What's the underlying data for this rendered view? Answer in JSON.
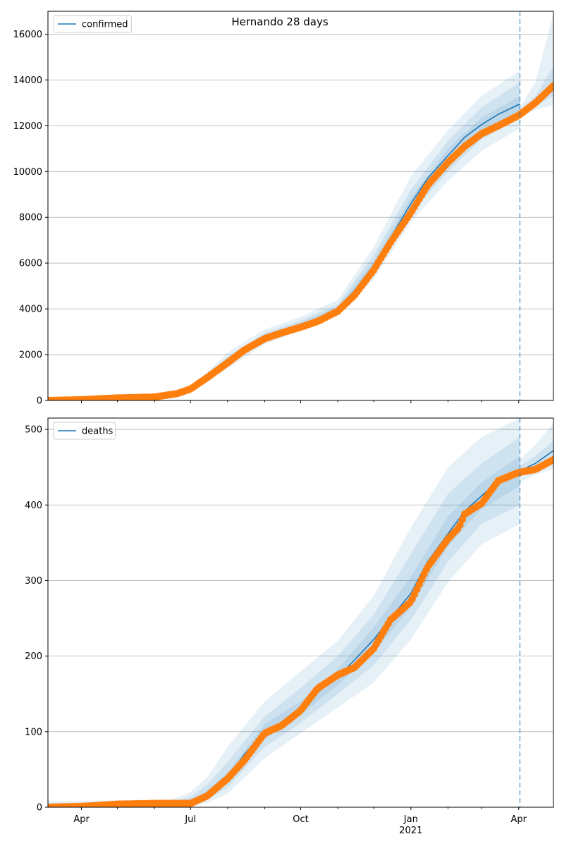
{
  "figure": {
    "title": "Hernando 28 days",
    "x_tick_labels": [
      {
        "label": "Apr",
        "date": "2020-04-01"
      },
      {
        "label": "Jul",
        "date": "2020-07-01"
      },
      {
        "label": "Oct",
        "date": "2020-10-01"
      },
      {
        "label": "Jan",
        "date": "2021-01-01"
      },
      {
        "label": "Apr",
        "date": "2021-04-01"
      }
    ],
    "x_year_label": {
      "label": "2021",
      "date": "2021-01-01"
    },
    "xlim": [
      "2020-03-04",
      "2021-04-30"
    ],
    "forecast_line_date": "2021-04-02"
  },
  "colors": {
    "model": "#1f77b4",
    "observed": "#ff7f0e",
    "band": "#1f77b4",
    "grid": "#b0b0b0"
  },
  "chart_data": [
    {
      "type": "line",
      "ylim": [
        0,
        17000
      ],
      "yticks": [
        0,
        2000,
        4000,
        6000,
        8000,
        10000,
        12000,
        14000,
        16000
      ],
      "grid": "horizontal",
      "legend": {
        "position": "top-left",
        "label": "confirmed"
      },
      "model_series": {
        "name": "confirmed",
        "dates": [
          "2020-03-04",
          "2020-06-15",
          "2020-07-01",
          "2020-07-15",
          "2020-08-01",
          "2020-08-15",
          "2020-09-01",
          "2020-09-15",
          "2020-10-01",
          "2020-10-15",
          "2020-11-01",
          "2020-11-15",
          "2020-12-01",
          "2020-12-15",
          "2021-01-01",
          "2021-01-15",
          "2021-02-01",
          "2021-02-15",
          "2021-03-01",
          "2021-03-15",
          "2021-04-02"
        ],
        "values": [
          0,
          130,
          430,
          1000,
          1700,
          2300,
          2750,
          3050,
          3300,
          3550,
          4000,
          4800,
          5900,
          7100,
          8600,
          9700,
          10700,
          11500,
          12050,
          12500,
          12950
        ],
        "forecast_dates": [
          "2021-04-02",
          "2021-04-15",
          "2021-04-30"
        ],
        "forecast_values": [
          12600,
          13000,
          13800
        ]
      },
      "observed": {
        "dates": [
          "2020-03-04",
          "2020-04-01",
          "2020-05-01",
          "2020-06-01",
          "2020-06-20",
          "2020-07-01",
          "2020-07-15",
          "2020-08-01",
          "2020-08-15",
          "2020-09-01",
          "2020-09-15",
          "2020-10-01",
          "2020-10-15",
          "2020-11-01",
          "2020-11-15",
          "2020-12-01",
          "2020-12-15",
          "2021-01-01",
          "2021-01-15",
          "2021-02-01",
          "2021-02-15",
          "2021-03-01",
          "2021-03-15",
          "2021-04-01",
          "2021-04-15",
          "2021-04-30"
        ],
        "values": [
          0,
          30,
          110,
          150,
          300,
          500,
          1000,
          1650,
          2200,
          2700,
          2950,
          3200,
          3450,
          3900,
          4600,
          5700,
          6900,
          8200,
          9400,
          10400,
          11100,
          11650,
          12000,
          12450,
          13000,
          13750
        ]
      },
      "bands": [
        {
          "level": "outer",
          "dates": [
            "2020-03-04",
            "2020-06-15",
            "2020-07-01",
            "2020-07-15",
            "2020-08-01",
            "2020-09-01",
            "2020-10-01",
            "2020-11-01",
            "2020-12-01",
            "2021-01-01",
            "2021-02-01",
            "2021-03-01",
            "2021-04-02"
          ],
          "lower": [
            0,
            100,
            350,
            800,
            1400,
            2450,
            3050,
            3700,
            5300,
            7800,
            9600,
            10900,
            11900
          ],
          "upper": [
            0,
            180,
            550,
            1250,
            2100,
            3100,
            3650,
            4400,
            6700,
            9800,
            11800,
            13300,
            14400
          ]
        },
        {
          "level": "middle",
          "dates": [
            "2020-03-04",
            "2020-06-15",
            "2020-07-01",
            "2020-07-15",
            "2020-08-01",
            "2020-09-01",
            "2020-10-01",
            "2020-11-01",
            "2020-12-01",
            "2021-01-01",
            "2021-02-01",
            "2021-03-01",
            "2021-04-02"
          ],
          "lower": [
            0,
            110,
            380,
            880,
            1520,
            2580,
            3150,
            3820,
            5550,
            8150,
            10000,
            11400,
            12350
          ],
          "upper": [
            0,
            160,
            500,
            1150,
            1920,
            2950,
            3500,
            4200,
            6350,
            9200,
            11350,
            12800,
            13900
          ]
        },
        {
          "level": "inner",
          "dates": [
            "2020-03-04",
            "2020-06-15",
            "2020-07-01",
            "2020-07-15",
            "2020-08-01",
            "2020-09-01",
            "2020-10-01",
            "2020-11-01",
            "2020-12-01",
            "2021-01-01",
            "2021-02-01",
            "2021-03-01",
            "2021-04-02"
          ],
          "lower": [
            0,
            120,
            410,
            950,
            1620,
            2680,
            3230,
            3920,
            5750,
            8400,
            10400,
            11800,
            12650
          ],
          "upper": [
            0,
            145,
            460,
            1060,
            1800,
            2850,
            3400,
            4100,
            6100,
            8850,
            11000,
            12350,
            13300
          ]
        }
      ],
      "forecast_bands": [
        {
          "level": "outer",
          "dates": [
            "2021-04-02",
            "2021-04-15",
            "2021-04-30"
          ],
          "lower": [
            12350,
            12700,
            12900
          ],
          "upper": [
            12800,
            13900,
            16900
          ]
        },
        {
          "level": "inner",
          "dates": [
            "2021-04-02",
            "2021-04-15",
            "2021-04-30"
          ],
          "lower": [
            12500,
            12850,
            13300
          ],
          "upper": [
            12700,
            13300,
            14600
          ]
        }
      ]
    },
    {
      "type": "line",
      "ylim": [
        0,
        515
      ],
      "yticks": [
        0,
        100,
        200,
        300,
        400,
        500
      ],
      "grid": "horizontal",
      "legend": {
        "position": "top-left",
        "label": "deaths"
      },
      "model_series": {
        "name": "deaths",
        "dates": [
          "2020-03-04",
          "2020-06-15",
          "2020-07-01",
          "2020-07-15",
          "2020-08-01",
          "2020-08-15",
          "2020-09-01",
          "2020-09-15",
          "2020-10-01",
          "2020-10-15",
          "2020-11-01",
          "2020-11-15",
          "2020-12-01",
          "2020-12-15",
          "2021-01-01",
          "2021-01-15",
          "2021-02-01",
          "2021-02-15",
          "2021-03-01",
          "2021-03-15",
          "2021-04-02"
        ],
        "values": [
          0,
          3,
          6,
          17,
          38,
          70,
          100,
          112,
          130,
          152,
          172,
          195,
          222,
          250,
          283,
          325,
          362,
          392,
          412,
          432,
          445
        ],
        "forecast_dates": [
          "2021-04-02",
          "2021-04-15",
          "2021-04-30"
        ],
        "forecast_values": [
          445,
          455,
          472
        ]
      },
      "observed": {
        "dates": [
          "2020-03-04",
          "2020-04-01",
          "2020-05-01",
          "2020-06-01",
          "2020-07-01",
          "2020-07-15",
          "2020-08-01",
          "2020-08-15",
          "2020-09-01",
          "2020-09-15",
          "2020-10-01",
          "2020-10-15",
          "2020-11-01",
          "2020-11-15",
          "2020-12-01",
          "2020-12-15",
          "2021-01-01",
          "2021-01-15",
          "2021-02-01",
          "2021-02-10",
          "2021-02-15",
          "2021-03-01",
          "2021-03-15",
          "2021-04-01",
          "2021-04-15",
          "2021-04-30"
        ],
        "values": [
          0,
          1,
          4,
          5,
          5,
          15,
          38,
          62,
          98,
          108,
          128,
          157,
          175,
          185,
          210,
          248,
          272,
          318,
          355,
          370,
          388,
          402,
          432,
          443,
          447,
          460
        ]
      },
      "bands": [
        {
          "level": "outer",
          "dates": [
            "2020-03-04",
            "2020-06-15",
            "2020-07-01",
            "2020-07-15",
            "2020-08-01",
            "2020-09-01",
            "2020-10-01",
            "2020-11-01",
            "2020-12-01",
            "2021-01-01",
            "2021-02-01",
            "2021-03-01",
            "2021-04-02"
          ],
          "lower": [
            0,
            0,
            0,
            6,
            18,
            65,
            98,
            132,
            165,
            222,
            298,
            348,
            375
          ],
          "upper": [
            8,
            10,
            20,
            40,
            80,
            140,
            180,
            220,
            280,
            370,
            450,
            490,
            515
          ]
        },
        {
          "level": "middle",
          "dates": [
            "2020-03-04",
            "2020-06-15",
            "2020-07-01",
            "2020-07-15",
            "2020-08-01",
            "2020-09-01",
            "2020-10-01",
            "2020-11-01",
            "2020-12-01",
            "2021-01-01",
            "2021-02-01",
            "2021-03-01",
            "2021-04-02"
          ],
          "lower": [
            0,
            1,
            2,
            10,
            26,
            80,
            112,
            150,
            188,
            248,
            325,
            375,
            400
          ],
          "upper": [
            5,
            7,
            14,
            30,
            60,
            120,
            158,
            200,
            255,
            335,
            415,
            455,
            490
          ]
        },
        {
          "level": "inner",
          "dates": [
            "2020-03-04",
            "2020-06-15",
            "2020-07-01",
            "2020-07-15",
            "2020-08-01",
            "2020-09-01",
            "2020-10-01",
            "2020-11-01",
            "2020-12-01",
            "2021-01-01",
            "2021-02-01",
            "2021-03-01",
            "2021-04-02"
          ],
          "lower": [
            0,
            2,
            4,
            13,
            32,
            90,
            122,
            162,
            205,
            265,
            345,
            395,
            425
          ],
          "upper": [
            3,
            5,
            9,
            22,
            46,
            110,
            140,
            183,
            238,
            305,
            385,
            430,
            465
          ]
        }
      ],
      "forecast_bands": [
        {
          "level": "outer",
          "dates": [
            "2021-04-02",
            "2021-04-15",
            "2021-04-30"
          ],
          "lower": [
            430,
            440,
            448
          ],
          "upper": [
            460,
            480,
            508
          ]
        },
        {
          "level": "inner",
          "dates": [
            "2021-04-02",
            "2021-04-15",
            "2021-04-30"
          ],
          "lower": [
            438,
            448,
            458
          ],
          "upper": [
            452,
            465,
            485
          ]
        }
      ]
    }
  ]
}
